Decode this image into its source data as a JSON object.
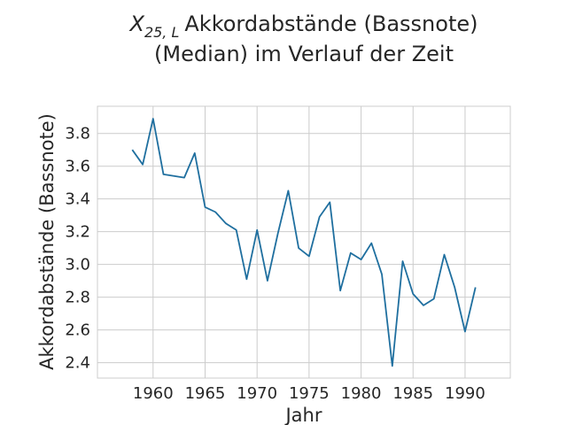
{
  "chart_data": {
    "type": "line",
    "title_line1_symbol": "X",
    "title_line1_subscript": "25, L",
    "title_line1_text": "Akkordabstände (Bassnote)",
    "title_line2": "(Median) im Verlauf der Zeit",
    "xlabel": "Jahr",
    "ylabel": "Akkordabstände (Bassnote)",
    "xlim": [
      1954.65,
      1994.35
    ],
    "ylim": [
      2.306,
      3.966
    ],
    "xticks": [
      1960,
      1965,
      1970,
      1975,
      1980,
      1985,
      1990
    ],
    "yticks": [
      2.4,
      2.6,
      2.8,
      3.0,
      3.2,
      3.4,
      3.6,
      3.8
    ],
    "ytick_labels": [
      "2.4",
      "2.6",
      "2.8",
      "3.0",
      "3.2",
      "3.4",
      "3.6",
      "3.8"
    ],
    "grid": true,
    "line_color": "#1f6f9f",
    "series": [
      {
        "x": [
          1958,
          1959,
          1960,
          1961,
          1963,
          1964,
          1965,
          1966,
          1967,
          1968,
          1969,
          1970,
          1971,
          1972,
          1973,
          1974,
          1975,
          1976,
          1977,
          1978,
          1979,
          1980,
          1981,
          1982,
          1983,
          1984,
          1985,
          1986,
          1987,
          1988,
          1989,
          1990,
          1991
        ],
        "y": [
          3.7,
          3.61,
          3.89,
          3.55,
          3.53,
          3.68,
          3.35,
          3.32,
          3.25,
          3.21,
          2.91,
          3.21,
          2.9,
          3.19,
          3.45,
          3.1,
          3.05,
          3.29,
          3.38,
          2.84,
          3.07,
          3.03,
          3.13,
          2.94,
          2.38,
          3.02,
          2.82,
          2.75,
          2.79,
          3.06,
          2.86,
          2.59,
          2.86
        ]
      }
    ]
  }
}
